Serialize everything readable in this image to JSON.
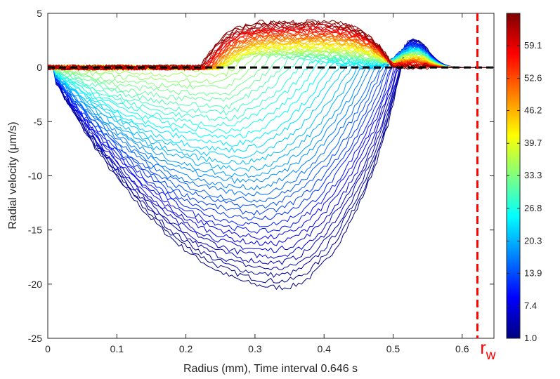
{
  "chart_data": {
    "type": "line",
    "title": "",
    "xlabel": "Radius (mm), Time interval 0.646 s",
    "ylabel": "Radial velocity (μm/s)",
    "xlim": [
      0,
      0.646
    ],
    "ylim": [
      -25,
      5
    ],
    "xticks": [
      "0",
      "0.1",
      "0.2",
      "0.3",
      "0.4",
      "0.5",
      "0.6"
    ],
    "yticks": [
      "5",
      "0",
      "-5",
      "-10",
      "-15",
      "-20",
      "-25"
    ],
    "grid": false,
    "colorbar": {
      "colormap": "jet",
      "range": [
        1.0,
        65.5
      ],
      "tick_labels": [
        "1.0",
        "7.4",
        "13.9",
        "20.3",
        "26.8",
        "33.3",
        "39.7",
        "46.2",
        "52.6",
        "59.1"
      ]
    },
    "reference_line": {
      "y": 0,
      "color": "#000000",
      "style": "dashed"
    },
    "marker_line": {
      "x": 0.622,
      "color": "#ff0000",
      "style": "dashed",
      "label": "r",
      "label_sub": "w"
    },
    "series_summary": {
      "count": 65,
      "min_velocity_um_s": -20.3,
      "min_velocity_radius_mm": 0.34,
      "max_velocity_um_s": 4.3,
      "max_velocity_radius_mm": 0.34
    }
  }
}
